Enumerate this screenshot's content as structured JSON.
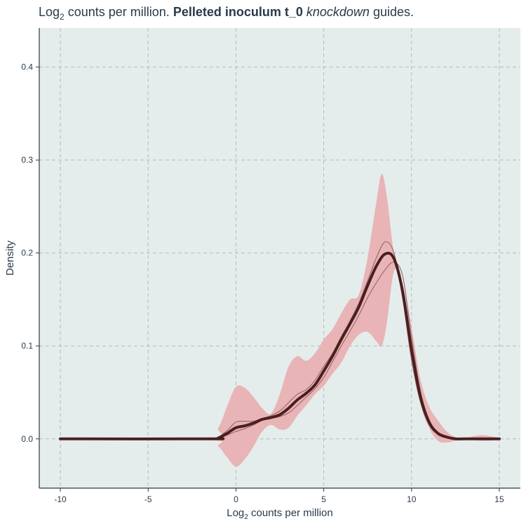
{
  "chart_data": {
    "type": "area",
    "title": {
      "prefix": "Log",
      "subscript": "2",
      "middle": " counts per million. ",
      "bold": "Pelleted inoculum t_0",
      "space": " ",
      "italic": "knockdown",
      "suffix": " guides."
    },
    "xlabel": {
      "prefix": "Log",
      "subscript": "2",
      "suffix": " counts per million"
    },
    "ylabel": "Density",
    "xlim": [
      -11.2,
      16.2
    ],
    "ylim": [
      -0.053,
      0.442
    ],
    "x_ticks": [
      -10,
      -5,
      0,
      5,
      10,
      15
    ],
    "x_tick_labels": [
      "-10",
      "-5",
      "0",
      "5",
      "10",
      "15"
    ],
    "y_ticks": [
      0.0,
      0.1,
      0.2,
      0.3,
      0.4
    ],
    "y_tick_labels": [
      "0.0",
      "0.1",
      "0.2",
      "0.3",
      "0.4"
    ],
    "grid": true,
    "colors": {
      "panel": "#e5ecec",
      "grid": "#b4b9bb",
      "band": "#e8b4b6",
      "mean_line": "#4a1f1f",
      "replicate_line": "#9c6466",
      "axis": "#2a3a4a"
    },
    "ribbon": {
      "x": [
        -10,
        -1.6,
        -1,
        -0.5,
        0,
        0.5,
        1,
        1.5,
        2,
        2.5,
        3,
        3.5,
        4,
        4.5,
        5,
        5.5,
        6,
        6.5,
        7,
        7.5,
        8,
        8.3,
        8.6,
        9,
        9.5,
        10,
        10.5,
        11,
        11.5,
        12,
        12.5,
        13,
        14,
        15
      ],
      "upper": [
        0,
        0.001,
        0.012,
        0.035,
        0.056,
        0.055,
        0.045,
        0.033,
        0.027,
        0.048,
        0.078,
        0.089,
        0.084,
        0.092,
        0.107,
        0.118,
        0.135,
        0.15,
        0.155,
        0.195,
        0.255,
        0.285,
        0.26,
        0.2,
        0.17,
        0.12,
        0.065,
        0.035,
        0.02,
        0.008,
        0.002,
        0.001,
        0.004,
        0.001
      ],
      "lower": [
        0,
        -0.001,
        -0.008,
        -0.02,
        -0.03,
        -0.022,
        -0.008,
        0.008,
        0.015,
        0.01,
        0.012,
        0.025,
        0.036,
        0.048,
        0.057,
        0.07,
        0.082,
        0.1,
        0.112,
        0.115,
        0.105,
        0.1,
        0.125,
        0.18,
        0.17,
        0.105,
        0.04,
        0.012,
        -0.002,
        -0.004,
        -0.002,
        0.0,
        -0.002,
        -0.001
      ]
    },
    "series": [
      {
        "x": [
          -10,
          -1.5,
          -1,
          -0.5,
          0,
          0.5,
          1,
          1.5,
          2,
          2.5,
          3,
          3.5,
          4,
          4.5,
          5,
          5.5,
          6,
          6.5,
          7,
          7.5,
          8,
          8.5,
          9,
          9.5,
          10,
          10.5,
          11,
          11.5,
          12,
          12.5,
          13,
          14,
          15
        ],
        "values": [
          0,
          0,
          0.001,
          0.006,
          0.012,
          0.014,
          0.017,
          0.021,
          0.023,
          0.026,
          0.033,
          0.042,
          0.049,
          0.058,
          0.073,
          0.089,
          0.107,
          0.124,
          0.142,
          0.165,
          0.186,
          0.199,
          0.194,
          0.158,
          0.096,
          0.046,
          0.018,
          0.006,
          0.002,
          0.0,
          0.0,
          0.0,
          0.0
        ]
      },
      {
        "x": [
          -10,
          -1.5,
          -1,
          -0.5,
          0,
          0.5,
          1,
          1.5,
          2,
          2.5,
          3,
          3.5,
          4,
          4.5,
          5,
          5.5,
          6,
          6.5,
          7,
          7.5,
          8,
          8.5,
          9,
          9.5,
          10,
          10.5,
          11,
          11.5,
          12,
          12.5,
          13,
          14,
          15
        ],
        "values": [
          0,
          0,
          0.002,
          0.009,
          0.018,
          0.019,
          0.019,
          0.022,
          0.025,
          0.03,
          0.039,
          0.048,
          0.053,
          0.063,
          0.078,
          0.092,
          0.11,
          0.127,
          0.146,
          0.17,
          0.195,
          0.212,
          0.2,
          0.15,
          0.085,
          0.04,
          0.015,
          0.005,
          0.001,
          0.0,
          0.0,
          0.0,
          0.0
        ]
      },
      {
        "x": [
          -10,
          -1.5,
          -1,
          -0.5,
          0,
          0.5,
          1,
          1.5,
          2,
          2.5,
          3,
          3.5,
          4,
          4.5,
          5,
          5.5,
          6,
          6.5,
          7,
          7.5,
          8,
          8.5,
          9,
          9.5,
          10,
          10.5,
          11,
          11.5,
          12,
          12.5,
          13,
          14,
          15
        ],
        "values": [
          0,
          0,
          0.001,
          0.004,
          0.008,
          0.011,
          0.015,
          0.02,
          0.022,
          0.024,
          0.028,
          0.036,
          0.045,
          0.054,
          0.066,
          0.083,
          0.1,
          0.116,
          0.133,
          0.152,
          0.168,
          0.182,
          0.19,
          0.175,
          0.11,
          0.052,
          0.02,
          0.007,
          0.002,
          0.0,
          0.0,
          0.0,
          0.0
        ]
      }
    ],
    "mean_line": {
      "x": [
        -10,
        -1.5,
        -1,
        -0.5,
        0,
        0.5,
        1,
        1.5,
        2,
        2.5,
        3,
        3.5,
        4,
        4.5,
        5,
        5.5,
        6,
        6.5,
        7,
        7.5,
        8,
        8.5,
        9,
        9.5,
        10,
        10.5,
        11,
        11.5,
        12,
        12.5,
        13,
        14,
        15
      ],
      "values": [
        0,
        0,
        0.001,
        0.006,
        0.012,
        0.014,
        0.017,
        0.021,
        0.023,
        0.026,
        0.033,
        0.042,
        0.049,
        0.058,
        0.073,
        0.089,
        0.107,
        0.124,
        0.142,
        0.165,
        0.186,
        0.199,
        0.194,
        0.158,
        0.096,
        0.046,
        0.018,
        0.006,
        0.002,
        0.0,
        0.0,
        0.0,
        0.0
      ]
    }
  }
}
